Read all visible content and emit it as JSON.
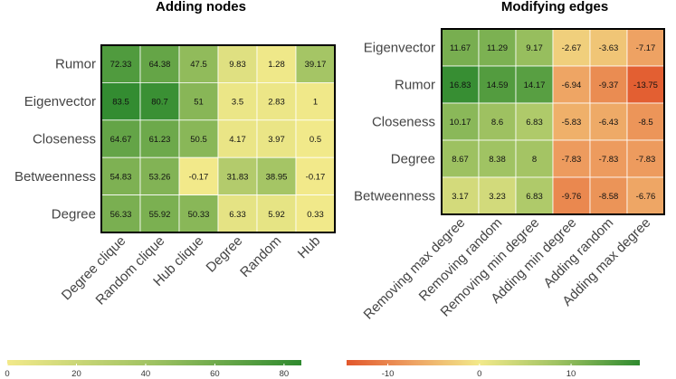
{
  "chart_data": [
    {
      "type": "heatmap",
      "title": "Adding nodes",
      "rows": [
        "Rumor",
        "Eigenvector",
        "Closeness",
        "Betweenness",
        "Degree"
      ],
      "columns": [
        "Degree clique",
        "Random clique",
        "Hub clique",
        "Degree",
        "Random",
        "Hub"
      ],
      "values": [
        [
          72.33,
          64.38,
          47.5,
          9.83,
          1.28,
          39.17
        ],
        [
          83.5,
          80.7,
          51,
          3.5,
          2.83,
          1
        ],
        [
          64.67,
          61.23,
          50.5,
          4.17,
          3.97,
          0.5
        ],
        [
          54.83,
          53.26,
          -0.17,
          31.83,
          38.95,
          -0.17
        ],
        [
          56.33,
          55.92,
          50.33,
          6.33,
          5.92,
          0.33
        ]
      ],
      "value_labels": [
        [
          "72.33",
          "64.38",
          "47.5",
          "9.83",
          "1.28",
          "39.17"
        ],
        [
          "83.5",
          "80.7",
          "51",
          "3.5",
          "2.83",
          "1"
        ],
        [
          "64.67",
          "61.23",
          "50.5",
          "4.17",
          "3.97",
          "0.5"
        ],
        [
          "54.83",
          "53.26",
          "-0.17",
          "31.83",
          "38.95",
          "-0.17"
        ],
        [
          "56.33",
          "55.92",
          "50.33",
          "6.33",
          "5.92",
          "0.33"
        ]
      ],
      "color_scale": {
        "range": [
          0,
          85
        ],
        "stops": [
          {
            "value": 0,
            "color": "#f2e98a"
          },
          {
            "value": 42,
            "color": "#9fc262"
          },
          {
            "value": 85,
            "color": "#2f8a2f"
          }
        ],
        "ticks": [
          0,
          20,
          40,
          60,
          80
        ],
        "tick_labels": [
          "0",
          "20",
          "40",
          "60",
          "80"
        ]
      }
    },
    {
      "type": "heatmap",
      "title": "Modifying edges",
      "rows": [
        "Eigenvector",
        "Rumor",
        "Closeness",
        "Degree",
        "Betweenness"
      ],
      "columns": [
        "Removing max degree",
        "Removing random",
        "Removing min degree",
        "Adding min degree",
        "Adding random",
        "Adding max degree"
      ],
      "values": [
        [
          11.67,
          11.29,
          9.17,
          -2.67,
          -3.63,
          -7.17
        ],
        [
          16.83,
          14.59,
          14.17,
          -6.94,
          -9.37,
          -13.75
        ],
        [
          10.17,
          8.6,
          6.83,
          -5.83,
          -6.43,
          -8.5
        ],
        [
          8.67,
          8.38,
          8,
          -7.83,
          -7.83,
          -7.83
        ],
        [
          3.17,
          3.23,
          6.83,
          -9.76,
          -8.58,
          -6.76
        ]
      ],
      "value_labels": [
        [
          "11.67",
          "11.29",
          "9.17",
          "-2.67",
          "-3.63",
          "-7.17"
        ],
        [
          "16.83",
          "14.59",
          "14.17",
          "-6.94",
          "-9.37",
          "-13.75"
        ],
        [
          "10.17",
          "8.6",
          "6.83",
          "-5.83",
          "-6.43",
          "-8.5"
        ],
        [
          "8.67",
          "8.38",
          "8",
          "-7.83",
          "-7.83",
          "-7.83"
        ],
        [
          "3.17",
          "3.23",
          "6.83",
          "-9.76",
          "-8.58",
          "-6.76"
        ]
      ],
      "color_scale": {
        "range": [
          -14.5,
          17.5
        ],
        "stops": [
          {
            "value": -14.5,
            "color": "#e2572c"
          },
          {
            "value": -7,
            "color": "#eea464"
          },
          {
            "value": 0,
            "color": "#f2e98a"
          },
          {
            "value": 8.5,
            "color": "#9fc262"
          },
          {
            "value": 17.5,
            "color": "#2f8a2f"
          }
        ],
        "ticks": [
          -10,
          0,
          10
        ],
        "tick_labels": [
          "-10",
          "0",
          "10"
        ]
      }
    }
  ]
}
